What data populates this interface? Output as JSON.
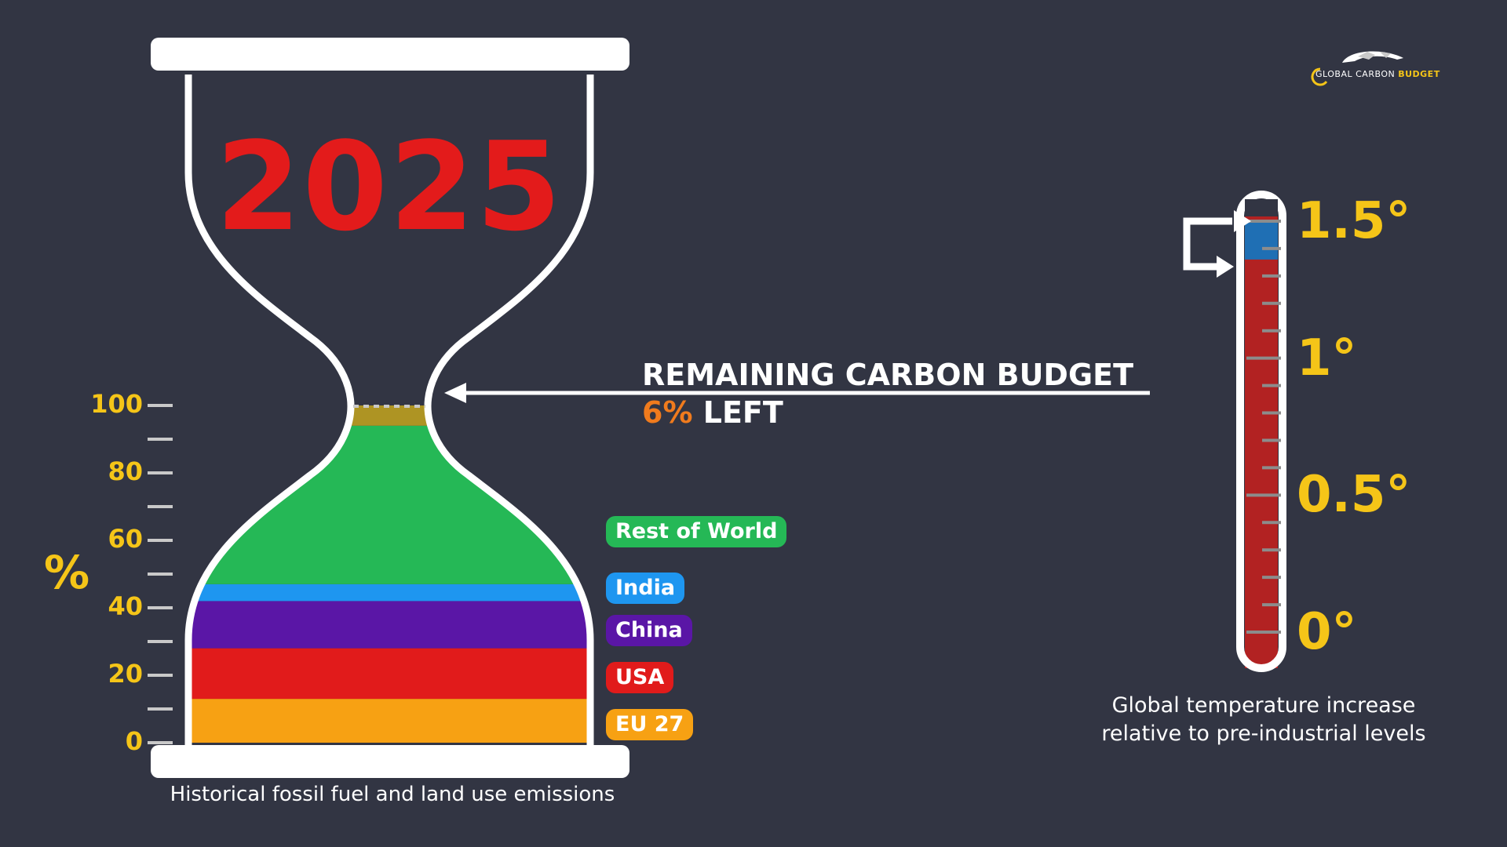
{
  "chart_data": [
    {
      "type": "bar",
      "title": "2025",
      "caption": "Historical fossil fuel and land use emissions",
      "ylabel": "%",
      "ylim": [
        0,
        100
      ],
      "yticks": [
        0,
        20,
        40,
        60,
        80,
        100
      ],
      "series": [
        {
          "name": "EU 27",
          "values": [
            13
          ],
          "color": "#f7a113"
        },
        {
          "name": "USA",
          "values": [
            15
          ],
          "color": "#e11b1b"
        },
        {
          "name": "China",
          "values": [
            14
          ],
          "color": "#5a16a6"
        },
        {
          "name": "India",
          "values": [
            5
          ],
          "color": "#1e96f0"
        },
        {
          "name": "Rest of World",
          "values": [
            47
          ],
          "color": "#25b856"
        },
        {
          "name": "Remaining carbon budget",
          "values": [
            6
          ],
          "color": "#ae9423"
        }
      ],
      "annotation": {
        "title": "REMAINING CARBON BUDGET",
        "percent": "6%",
        "suffix": "LEFT"
      }
    },
    {
      "type": "bar",
      "caption_line1": "Global temperature increase",
      "caption_line2": "relative to pre-industrial levels",
      "ylim": [
        0,
        1.5
      ],
      "yticks": [
        {
          "value": 0,
          "label": "0°"
        },
        {
          "value": 0.5,
          "label": "0.5°"
        },
        {
          "value": 1,
          "label": "1°"
        },
        {
          "value": 1.5,
          "label": "1.5°"
        }
      ],
      "current_warming": 1.36,
      "target": 1.5,
      "colors": {
        "filled": "#b22222",
        "remaining": "#1f6fb4"
      }
    }
  ],
  "logo": {
    "text_light": "GLOBAL CARBON ",
    "text_bold": "BUDGET"
  }
}
